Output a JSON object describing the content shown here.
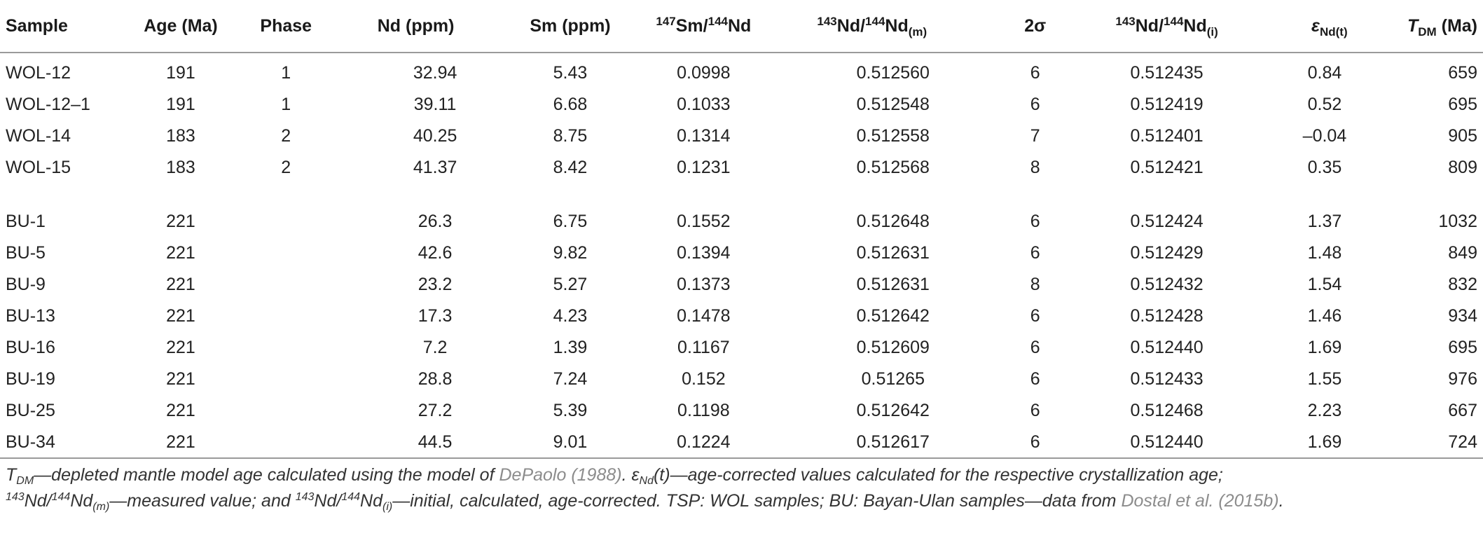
{
  "table": {
    "headers": {
      "sample": "Sample",
      "age": "Age (Ma)",
      "phase": "Phase",
      "nd": "Nd (ppm)",
      "sm": "Sm (ppm)",
      "smnd": {
        "sup1": "147",
        "a": "Sm/",
        "sup2": "144",
        "b": "Nd"
      },
      "ndm": {
        "sup1": "143",
        "a": "Nd/",
        "sup2": "144",
        "b": "Nd",
        "sub": "(m)"
      },
      "sigma": "2σ",
      "ndi": {
        "sup1": "143",
        "a": "Nd/",
        "sup2": "144",
        "b": "Nd",
        "sub": "(i)"
      },
      "eps": {
        "sym": "ε",
        "sub": "Nd(t)"
      },
      "tdm": {
        "sym": "T",
        "sub": "DM",
        "unit": " (Ma)"
      }
    },
    "rows": [
      [
        "WOL-12",
        "191",
        "1",
        "32.94",
        "5.43",
        "0.0998",
        "0.512560",
        "6",
        "0.512435",
        "0.84",
        "659"
      ],
      [
        "WOL-12–1",
        "191",
        "1",
        "39.11",
        "6.68",
        "0.1033",
        "0.512548",
        "6",
        "0.512419",
        "0.52",
        "695"
      ],
      [
        "WOL-14",
        "183",
        "2",
        "40.25",
        "8.75",
        "0.1314",
        "0.512558",
        "7",
        "0.512401",
        "–0.04",
        "905"
      ],
      [
        "WOL-15",
        "183",
        "2",
        "41.37",
        "8.42",
        "0.1231",
        "0.512568",
        "8",
        "0.512421",
        "0.35",
        "809"
      ],
      [
        "BU-1",
        "221",
        "",
        "26.3",
        "6.75",
        "0.1552",
        "0.512648",
        "6",
        "0.512424",
        "1.37",
        "1032"
      ],
      [
        "BU-5",
        "221",
        "",
        "42.6",
        "9.82",
        "0.1394",
        "0.512631",
        "6",
        "0.512429",
        "1.48",
        "849"
      ],
      [
        "BU-9",
        "221",
        "",
        "23.2",
        "5.27",
        "0.1373",
        "0.512631",
        "8",
        "0.512432",
        "1.54",
        "832"
      ],
      [
        "BU-13",
        "221",
        "",
        "17.3",
        "4.23",
        "0.1478",
        "0.512642",
        "6",
        "0.512428",
        "1.46",
        "934"
      ],
      [
        "BU-16",
        "221",
        "",
        "7.2",
        "1.39",
        "0.1167",
        "0.512609",
        "6",
        "0.512440",
        "1.69",
        "695"
      ],
      [
        "BU-19",
        "221",
        "",
        "28.8",
        "7.24",
        "0.152",
        "0.51265",
        "6",
        "0.512433",
        "1.55",
        "976"
      ],
      [
        "BU-25",
        "221",
        "",
        "27.2",
        "5.39",
        "0.1198",
        "0.512642",
        "6",
        "0.512468",
        "2.23",
        "667"
      ],
      [
        "BU-34",
        "221",
        "",
        "44.5",
        "9.01",
        "0.1224",
        "0.512617",
        "6",
        "0.512440",
        "1.69",
        "724"
      ]
    ]
  },
  "footnote": {
    "t_sym": "T",
    "t_sub": "DM",
    "t_text": "—depleted mantle model age calculated using the model of ",
    "ref1": "DePaolo (1988)",
    "eps_text1": ". ",
    "eps_sym": "ε",
    "eps_sub": "Nd",
    "eps_text2": "(t)—age-corrected values calculated for the respective crystallization age;",
    "m_sup1": "143",
    "m_a": "Nd/",
    "m_sup2": "144",
    "m_b": "Nd",
    "m_sub": "(m)",
    "m_text": "—measured value; and ",
    "i_sup1": "143",
    "i_a": "Nd/",
    "i_sup2": "144",
    "i_b": "Nd",
    "i_sub": "(i)",
    "i_text": "—initial, calculated, age-corrected. TSP: WOL samples; BU: Bayan-Ulan samples—data from ",
    "ref2": "Dostal et al. (2015b)",
    "end": "."
  }
}
